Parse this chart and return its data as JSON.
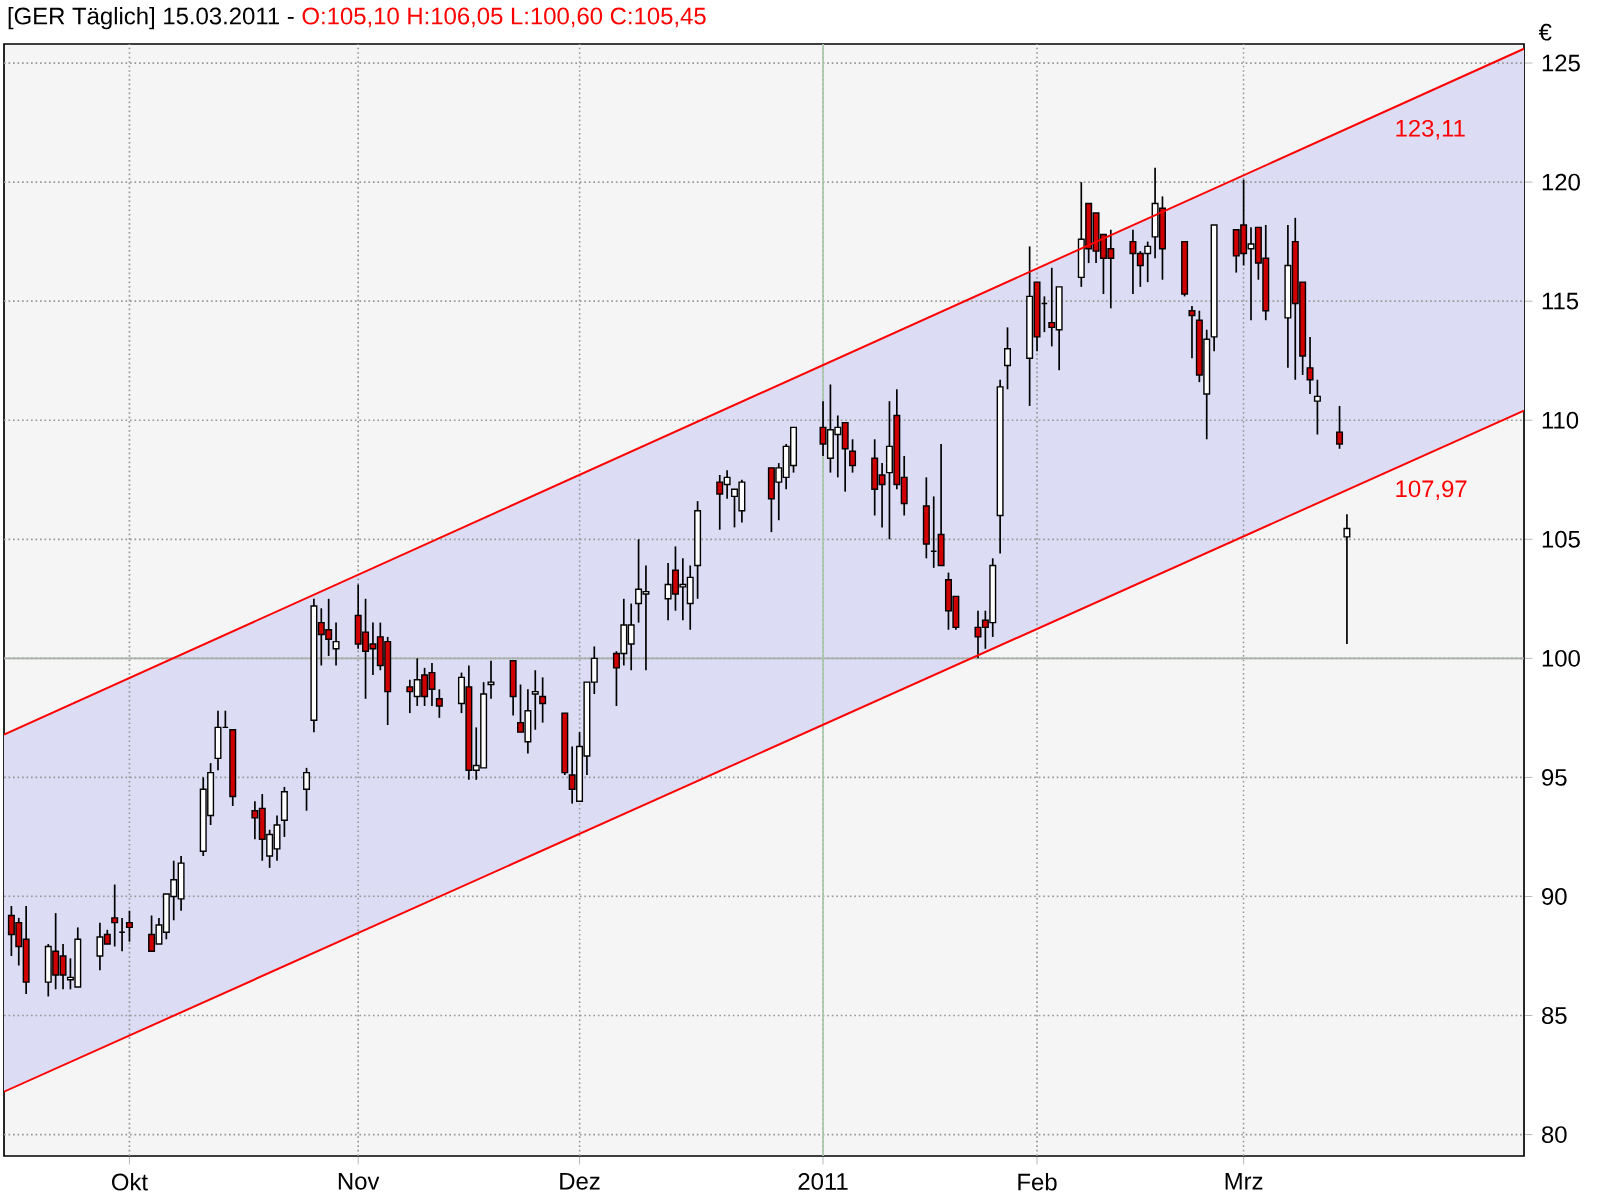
{
  "chart_data": {
    "type": "candlestick",
    "title": "[GER  Täglich] 15.03.2011 -",
    "subtitle": "O:105,10 H:106,05 L:100,60 C:105,45",
    "ylabel": "€",
    "xlim": [
      "2010-09-14",
      "2011-04-08"
    ],
    "ylim": [
      79.1,
      125.8
    ],
    "xticks": [
      {
        "value": "2010-10-01",
        "label": "Okt"
      },
      {
        "value": "2010-11-01",
        "label": "Nov"
      },
      {
        "value": "2010-12-01",
        "label": "Dez"
      },
      {
        "value": "2011-01-03",
        "label": "2011"
      },
      {
        "value": "2011-02-01",
        "label": "Feb"
      },
      {
        "value": "2011-03-01",
        "label": "Mrz"
      }
    ],
    "yticks": [
      80,
      85,
      90,
      95,
      100,
      105,
      110,
      115,
      120,
      125
    ],
    "grid": true,
    "ref_lines": [
      {
        "axis": "y",
        "value": 100,
        "color": "#a8b0a8"
      },
      {
        "axis": "x",
        "value": "2011-01-03",
        "color": "#a8c8a8"
      }
    ],
    "annotations": [
      {
        "text": "123,11",
        "x": "2011-03-21",
        "y": 123.11
      },
      {
        "text": "107,97",
        "x": "2011-03-21",
        "y": 107.97
      }
    ],
    "series": [
      {
        "colors": [
          "#d00000",
          "#d00000",
          "#d00000",
          "#ffffff",
          "#d00000",
          "#d00000",
          "#ffffff",
          "#ffffff",
          "#ffffff",
          "#d00000",
          "#d00000",
          "#000000",
          "#d00000",
          "#d00000",
          "#ffffff",
          "#ffffff",
          "#ffffff",
          "#ffffff",
          "#ffffff",
          "#ffffff",
          "#ffffff",
          "#000000",
          "#d00000",
          "#d00000",
          "#d00000",
          "#ffffff",
          "#ffffff",
          "#ffffff",
          "#ffffff",
          "#ffffff",
          "#d00000",
          "#d00000",
          "#ffffff",
          "#d00000",
          "#d00000",
          "#d00000",
          "#d00000",
          "#d00000",
          "#d00000",
          "#ffffff",
          "#d00000",
          "#d00000",
          "#d00000",
          "#ffffff",
          "#d00000",
          "#ffffff",
          "#ffffff",
          "#ffffff",
          "#d00000",
          "#d00000",
          "#ffffff",
          "#ffffff",
          "#d00000",
          "#d00000",
          "#d00000",
          "#ffffff",
          "#ffffff",
          "#ffffff",
          "#d00000",
          "#ffffff",
          "#ffffff",
          "#ffffff",
          "#ffffff",
          "#ffffff",
          "#d00000",
          "#ffffff",
          "#ffffff",
          "#ffffff",
          "#d00000",
          "#ffffff",
          "#ffffff",
          "#ffffff",
          "#d00000",
          "#ffffff",
          "#ffffff",
          "#ffffff",
          "#d00000",
          "#ffffff",
          "#ffffff",
          "#d00000",
          "#d00000",
          "#d00000",
          "#d00000",
          "#ffffff",
          "#d00000",
          "#d00000",
          "#d00000",
          "#000000",
          "#d00000",
          "#d00000",
          "#d00000",
          "#d00000",
          "#d00000",
          "#ffffff",
          "#ffffff",
          "#ffffff",
          "#ffffff",
          "#d00000",
          "#000000",
          "#d00000",
          "#ffffff",
          "#ffffff",
          "#d00000",
          "#d00000",
          "#d00000",
          "#d00000",
          "#d00000",
          "#d00000",
          "#ffffff",
          "#ffffff",
          "#d00000",
          "#d00000",
          "#d00000",
          "#d00000",
          "#ffffff",
          "#ffffff",
          "#d00000",
          "#d00000",
          "#ffffff",
          "#d00000",
          "#d00000",
          "#ffffff",
          "#d00000",
          "#d00000",
          "#d00000",
          "#ffffff",
          "#d00000",
          "#ffffff"
        ],
        "x": [
          "2010-09-15",
          "2010-09-16",
          "2010-09-17",
          "2010-09-20",
          "2010-09-21",
          "2010-09-22",
          "2010-09-23",
          "2010-09-24",
          "2010-09-27",
          "2010-09-28",
          "2010-09-29",
          "2010-09-30",
          "2010-10-01",
          "2010-10-04",
          "2010-10-05",
          "2010-10-06",
          "2010-10-07",
          "2010-10-08",
          "2010-10-11",
          "2010-10-12",
          "2010-10-13",
          "2010-10-14",
          "2010-10-15",
          "2010-10-18",
          "2010-10-19",
          "2010-10-20",
          "2010-10-21",
          "2010-10-22",
          "2010-10-25",
          "2010-10-26",
          "2010-10-27",
          "2010-10-28",
          "2010-10-29",
          "2010-11-01",
          "2010-11-02",
          "2010-11-03",
          "2010-11-04",
          "2010-11-05",
          "2010-11-08",
          "2010-11-09",
          "2010-11-10",
          "2010-11-11",
          "2010-11-12",
          "2010-11-15",
          "2010-11-16",
          "2010-11-17",
          "2010-11-18",
          "2010-11-19",
          "2010-11-22",
          "2010-11-23",
          "2010-11-24",
          "2010-11-25",
          "2010-11-26",
          "2010-11-29",
          "2010-11-30",
          "2010-12-01",
          "2010-12-02",
          "2010-12-03",
          "2010-12-06",
          "2010-12-07",
          "2010-12-08",
          "2010-12-09",
          "2010-12-10",
          "2010-12-13",
          "2010-12-14",
          "2010-12-15",
          "2010-12-16",
          "2010-12-17",
          "2010-12-20",
          "2010-12-21",
          "2010-12-22",
          "2010-12-23",
          "2010-12-27",
          "2010-12-28",
          "2010-12-29",
          "2010-12-30",
          "2011-01-03",
          "2011-01-04",
          "2011-01-05",
          "2011-01-06",
          "2011-01-07",
          "2011-01-10",
          "2011-01-11",
          "2011-01-12",
          "2011-01-13",
          "2011-01-14",
          "2011-01-17",
          "2011-01-18",
          "2011-01-19",
          "2011-01-20",
          "2011-01-21",
          "2011-01-24",
          "2011-01-25",
          "2011-01-26",
          "2011-01-27",
          "2011-01-28",
          "2011-01-31",
          "2011-02-01",
          "2011-02-02",
          "2011-02-03",
          "2011-02-04",
          "2011-02-07",
          "2011-02-08",
          "2011-02-09",
          "2011-02-10",
          "2011-02-11",
          "2011-02-14",
          "2011-02-15",
          "2011-02-16",
          "2011-02-17",
          "2011-02-18",
          "2011-02-21",
          "2011-02-22",
          "2011-02-23",
          "2011-02-24",
          "2011-02-25",
          "2011-02-28",
          "2011-03-01",
          "2011-03-02",
          "2011-03-03",
          "2011-03-04",
          "2011-03-07",
          "2011-03-08",
          "2011-03-09",
          "2011-03-10",
          "2011-03-11",
          "2011-03-14",
          "2011-03-15"
        ],
        "ohlc": [
          [
            89.2,
            89.6,
            87.5,
            88.4
          ],
          [
            88.9,
            89.1,
            87.1,
            87.9
          ],
          [
            88.2,
            89.6,
            85.9,
            86.4
          ],
          [
            86.4,
            88.0,
            85.8,
            87.9
          ],
          [
            87.7,
            89.3,
            86.1,
            86.7
          ],
          [
            87.5,
            88.0,
            86.1,
            86.7
          ],
          [
            86.5,
            87.4,
            86.1,
            86.6
          ],
          [
            86.2,
            88.7,
            86.2,
            88.2
          ],
          [
            87.5,
            88.9,
            86.9,
            88.3
          ],
          [
            88.4,
            88.6,
            88.0,
            88.0
          ],
          [
            89.1,
            90.5,
            87.9,
            88.9
          ],
          [
            88.5,
            89.1,
            87.7,
            88.5
          ],
          [
            88.9,
            89.4,
            88.1,
            88.7
          ],
          [
            88.4,
            89.2,
            87.7,
            87.7
          ],
          [
            88.0,
            89.1,
            88.0,
            88.8
          ],
          [
            88.5,
            90.1,
            88.2,
            90.1
          ],
          [
            90.0,
            91.5,
            89.0,
            90.7
          ],
          [
            89.9,
            91.7,
            89.4,
            91.4
          ],
          [
            91.9,
            95.0,
            91.7,
            94.5
          ],
          [
            93.4,
            95.6,
            93.0,
            95.2
          ],
          [
            95.8,
            97.8,
            95.3,
            97.1
          ],
          [
            97.1,
            97.8,
            97.1,
            97.1
          ],
          [
            97.0,
            97.0,
            93.8,
            94.2
          ],
          [
            93.6,
            94.0,
            92.4,
            93.3
          ],
          [
            93.7,
            94.3,
            91.5,
            92.4
          ],
          [
            91.7,
            92.8,
            91.2,
            92.6
          ],
          [
            92.0,
            93.4,
            91.5,
            93.0
          ],
          [
            93.2,
            94.6,
            92.5,
            94.4
          ],
          [
            94.5,
            95.4,
            93.6,
            95.2
          ],
          [
            97.4,
            102.5,
            96.9,
            102.2
          ],
          [
            101.5,
            102.1,
            99.7,
            101.0
          ],
          [
            101.2,
            102.5,
            100.1,
            100.8
          ],
          [
            100.4,
            101.5,
            99.7,
            100.7
          ],
          [
            101.8,
            103.1,
            100.4,
            100.6
          ],
          [
            101.1,
            102.5,
            98.3,
            100.3
          ],
          [
            100.6,
            101.5,
            99.3,
            100.4
          ],
          [
            100.9,
            101.5,
            99.5,
            99.7
          ],
          [
            100.7,
            100.9,
            97.2,
            98.6
          ],
          [
            98.8,
            99.1,
            97.7,
            98.6
          ],
          [
            98.4,
            100.0,
            98.0,
            99.1
          ],
          [
            99.3,
            99.6,
            98.0,
            98.4
          ],
          [
            99.4,
            99.8,
            98.0,
            98.7
          ],
          [
            98.3,
            98.7,
            97.5,
            98.0
          ],
          [
            98.1,
            99.4,
            97.7,
            99.2
          ],
          [
            98.8,
            99.7,
            94.9,
            95.3
          ],
          [
            95.3,
            97.1,
            94.9,
            95.5
          ],
          [
            95.4,
            99.0,
            95.4,
            98.5
          ],
          [
            98.9,
            99.9,
            98.3,
            99.0
          ],
          [
            99.9,
            99.9,
            97.6,
            98.4
          ],
          [
            97.3,
            98.9,
            96.9,
            96.9
          ],
          [
            96.5,
            98.7,
            96.0,
            97.8
          ],
          [
            98.5,
            99.5,
            97.0,
            98.6
          ],
          [
            98.4,
            99.2,
            97.3,
            98.1
          ],
          [
            97.7,
            97.7,
            95.1,
            95.2
          ],
          [
            95.1,
            96.3,
            93.9,
            94.5
          ],
          [
            94.0,
            96.9,
            94.0,
            96.3
          ],
          [
            95.9,
            99.0,
            95.1,
            99.0
          ],
          [
            99.0,
            100.5,
            98.5,
            100.0
          ],
          [
            100.2,
            100.3,
            98.0,
            99.6
          ],
          [
            100.2,
            102.5,
            99.7,
            101.4
          ],
          [
            100.6,
            102.3,
            99.5,
            101.4
          ],
          [
            102.3,
            105.0,
            101.5,
            102.9
          ],
          [
            102.7,
            103.9,
            99.5,
            102.8
          ],
          [
            102.5,
            104.0,
            101.6,
            103.1
          ],
          [
            103.7,
            104.7,
            102.0,
            102.7
          ],
          [
            103.0,
            104.2,
            101.6,
            103.1
          ],
          [
            102.3,
            103.9,
            101.2,
            103.4
          ],
          [
            103.9,
            106.6,
            102.5,
            106.2
          ],
          [
            107.4,
            107.7,
            105.4,
            106.9
          ],
          [
            107.3,
            107.9,
            106.7,
            107.6
          ],
          [
            106.8,
            107.1,
            105.5,
            107.1
          ],
          [
            106.2,
            107.5,
            105.7,
            107.4
          ],
          [
            108.0,
            108.0,
            105.3,
            106.7
          ],
          [
            107.4,
            108.2,
            105.8,
            108.0
          ],
          [
            107.6,
            109.0,
            107.1,
            108.9
          ],
          [
            108.1,
            109.7,
            107.8,
            109.7
          ],
          [
            109.7,
            110.8,
            108.5,
            109.0
          ],
          [
            108.4,
            111.5,
            107.8,
            109.6
          ],
          [
            109.4,
            110.2,
            107.6,
            109.7
          ],
          [
            109.9,
            109.9,
            107.0,
            108.8
          ],
          [
            108.7,
            109.2,
            107.8,
            108.1
          ],
          [
            108.4,
            109.2,
            106.0,
            107.1
          ],
          [
            107.7,
            108.2,
            105.5,
            107.3
          ],
          [
            107.8,
            110.8,
            105.0,
            108.9
          ],
          [
            110.2,
            111.3,
            107.1,
            107.3
          ],
          [
            107.6,
            108.5,
            106.0,
            106.5
          ],
          [
            106.4,
            107.6,
            104.2,
            104.8
          ],
          [
            104.5,
            106.8,
            103.8,
            104.5
          ],
          [
            105.2,
            109.0,
            103.9,
            103.9
          ],
          [
            103.3,
            103.6,
            101.2,
            102.0
          ],
          [
            102.6,
            102.6,
            101.2,
            101.3
          ],
          [
            101.3,
            102.0,
            100.0,
            100.9
          ],
          [
            101.6,
            102.0,
            100.4,
            101.3
          ],
          [
            101.5,
            104.2,
            100.9,
            103.9
          ],
          [
            106.0,
            111.7,
            104.4,
            111.4
          ],
          [
            112.3,
            113.9,
            111.3,
            113.0
          ],
          [
            112.6,
            117.3,
            110.6,
            115.2
          ],
          [
            115.8,
            115.8,
            112.9,
            113.5
          ],
          [
            114.9,
            115.2,
            113.7,
            114.9
          ],
          [
            114.1,
            116.4,
            113.1,
            113.9
          ],
          [
            113.8,
            115.6,
            112.1,
            115.6
          ],
          [
            116.0,
            120.0,
            115.6,
            117.6
          ],
          [
            119.1,
            119.1,
            116.6,
            117.2
          ],
          [
            118.7,
            118.7,
            116.6,
            117.1
          ],
          [
            117.8,
            117.8,
            115.3,
            116.8
          ],
          [
            117.2,
            118.0,
            114.7,
            116.8
          ],
          [
            117.5,
            118.0,
            115.3,
            117.0
          ],
          [
            117.0,
            117.1,
            115.6,
            116.5
          ],
          [
            117.0,
            117.5,
            115.8,
            117.3
          ],
          [
            117.7,
            120.6,
            116.8,
            119.1
          ],
          [
            118.9,
            119.4,
            115.9,
            117.2
          ],
          [
            117.5,
            117.5,
            115.2,
            115.3
          ],
          [
            114.6,
            114.8,
            112.6,
            114.4
          ],
          [
            114.2,
            114.6,
            111.6,
            111.9
          ],
          [
            111.1,
            113.8,
            109.2,
            113.4
          ],
          [
            113.5,
            118.2,
            112.9,
            118.2
          ],
          [
            118.0,
            118.0,
            116.2,
            116.9
          ],
          [
            118.2,
            120.1,
            116.5,
            117.0
          ],
          [
            117.2,
            118.1,
            114.2,
            117.4
          ],
          [
            118.1,
            118.1,
            115.9,
            116.6
          ],
          [
            116.8,
            118.2,
            114.2,
            114.6
          ],
          [
            114.3,
            118.2,
            112.2,
            116.5
          ],
          [
            117.5,
            118.5,
            111.7,
            114.9
          ],
          [
            115.8,
            115.8,
            111.9,
            112.7
          ],
          [
            112.2,
            113.5,
            111.1,
            111.7
          ],
          [
            110.8,
            111.7,
            109.4,
            111.0
          ],
          [
            109.5,
            110.6,
            108.8,
            109.0
          ],
          [
            105.1,
            106.05,
            100.6,
            105.45
          ]
        ]
      },
      {
        "type": "line",
        "color": "#ff0000",
        "x": [
          "2010-09-14",
          "2011-04-08"
        ],
        "values": [
          96.8,
          125.6
        ],
        "lower": [
          81.8,
          110.4
        ],
        "upper": [
          96.8,
          125.6
        ]
      },
      {
        "type": "line",
        "color": "#ff0000",
        "x": [
          "2010-09-14",
          "2011-04-08"
        ],
        "values": [
          81.8,
          110.4
        ]
      }
    ]
  }
}
